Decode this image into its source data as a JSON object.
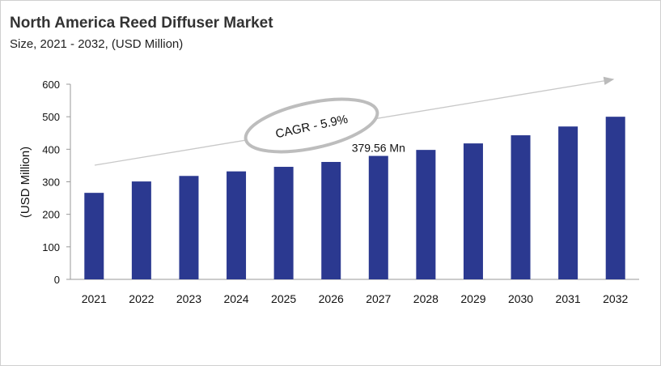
{
  "chart_data": {
    "type": "bar",
    "title": "North America Reed Diffuser Market",
    "subtitle": "Size, 2021 - 2032, (USD Million)",
    "ylabel": "(USD Million)",
    "xlabel": "",
    "categories": [
      "2021",
      "2022",
      "2023",
      "2024",
      "2025",
      "2026",
      "2027",
      "2028",
      "2029",
      "2030",
      "2031",
      "2032"
    ],
    "values": [
      266,
      301,
      318,
      332,
      346,
      361,
      379.56,
      398,
      418,
      443,
      470,
      500
    ],
    "ylim": [
      0,
      600
    ],
    "yticks": [
      0,
      100,
      200,
      300,
      400,
      500,
      600
    ],
    "grid": false,
    "legend": "none",
    "bar_color": "#2b3990",
    "annotations": {
      "data_label": {
        "category": "2027",
        "text": "379.56 Mn"
      },
      "cagr": "CAGR - 5.9%"
    }
  }
}
